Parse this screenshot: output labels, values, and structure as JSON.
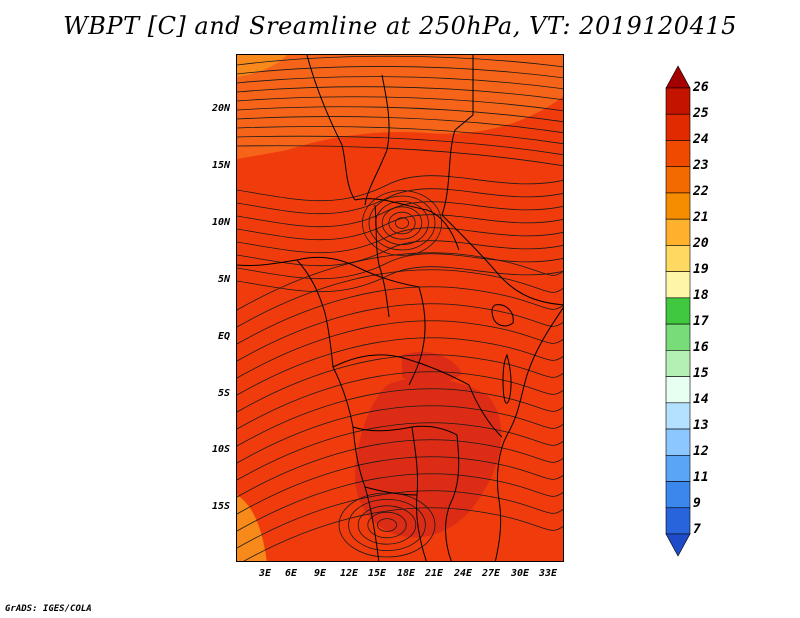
{
  "title": "WBPT [C] and Sreamline at 250hPa, VT: 2019120415",
  "credit": "GrADS: IGES/COLA",
  "map": {
    "lat_labels": [
      "20N",
      "15N",
      "10N",
      "5N",
      "EQ",
      "5S",
      "10S",
      "15S"
    ],
    "lon_labels": [
      "3E",
      "6E",
      "9E",
      "12E",
      "15E",
      "18E",
      "21E",
      "24E",
      "27E",
      "30E",
      "33E"
    ],
    "fill_colors": {
      "base": "#f03c0c",
      "north": "#f56418",
      "warm": "#dc2c16",
      "corner": "#f78a1a",
      "streamline": "#1a1a1a",
      "border": "#000000"
    }
  },
  "colorbar": {
    "labels": [
      "26",
      "25",
      "24",
      "23",
      "22",
      "21",
      "20",
      "19",
      "18",
      "17",
      "16",
      "15",
      "14",
      "13",
      "12",
      "11",
      "9",
      "7"
    ],
    "colors": [
      "#a50000",
      "#c41400",
      "#e12a00",
      "#f04a00",
      "#f26a00",
      "#f68c00",
      "#fdb12c",
      "#fed860",
      "#fff5a8",
      "#40c840",
      "#78dc78",
      "#b4f0b4",
      "#e6fff0",
      "#b4e1ff",
      "#8cc8ff",
      "#5aa5f5",
      "#3c87eb",
      "#2864dc",
      "#1e4bc8"
    ]
  }
}
